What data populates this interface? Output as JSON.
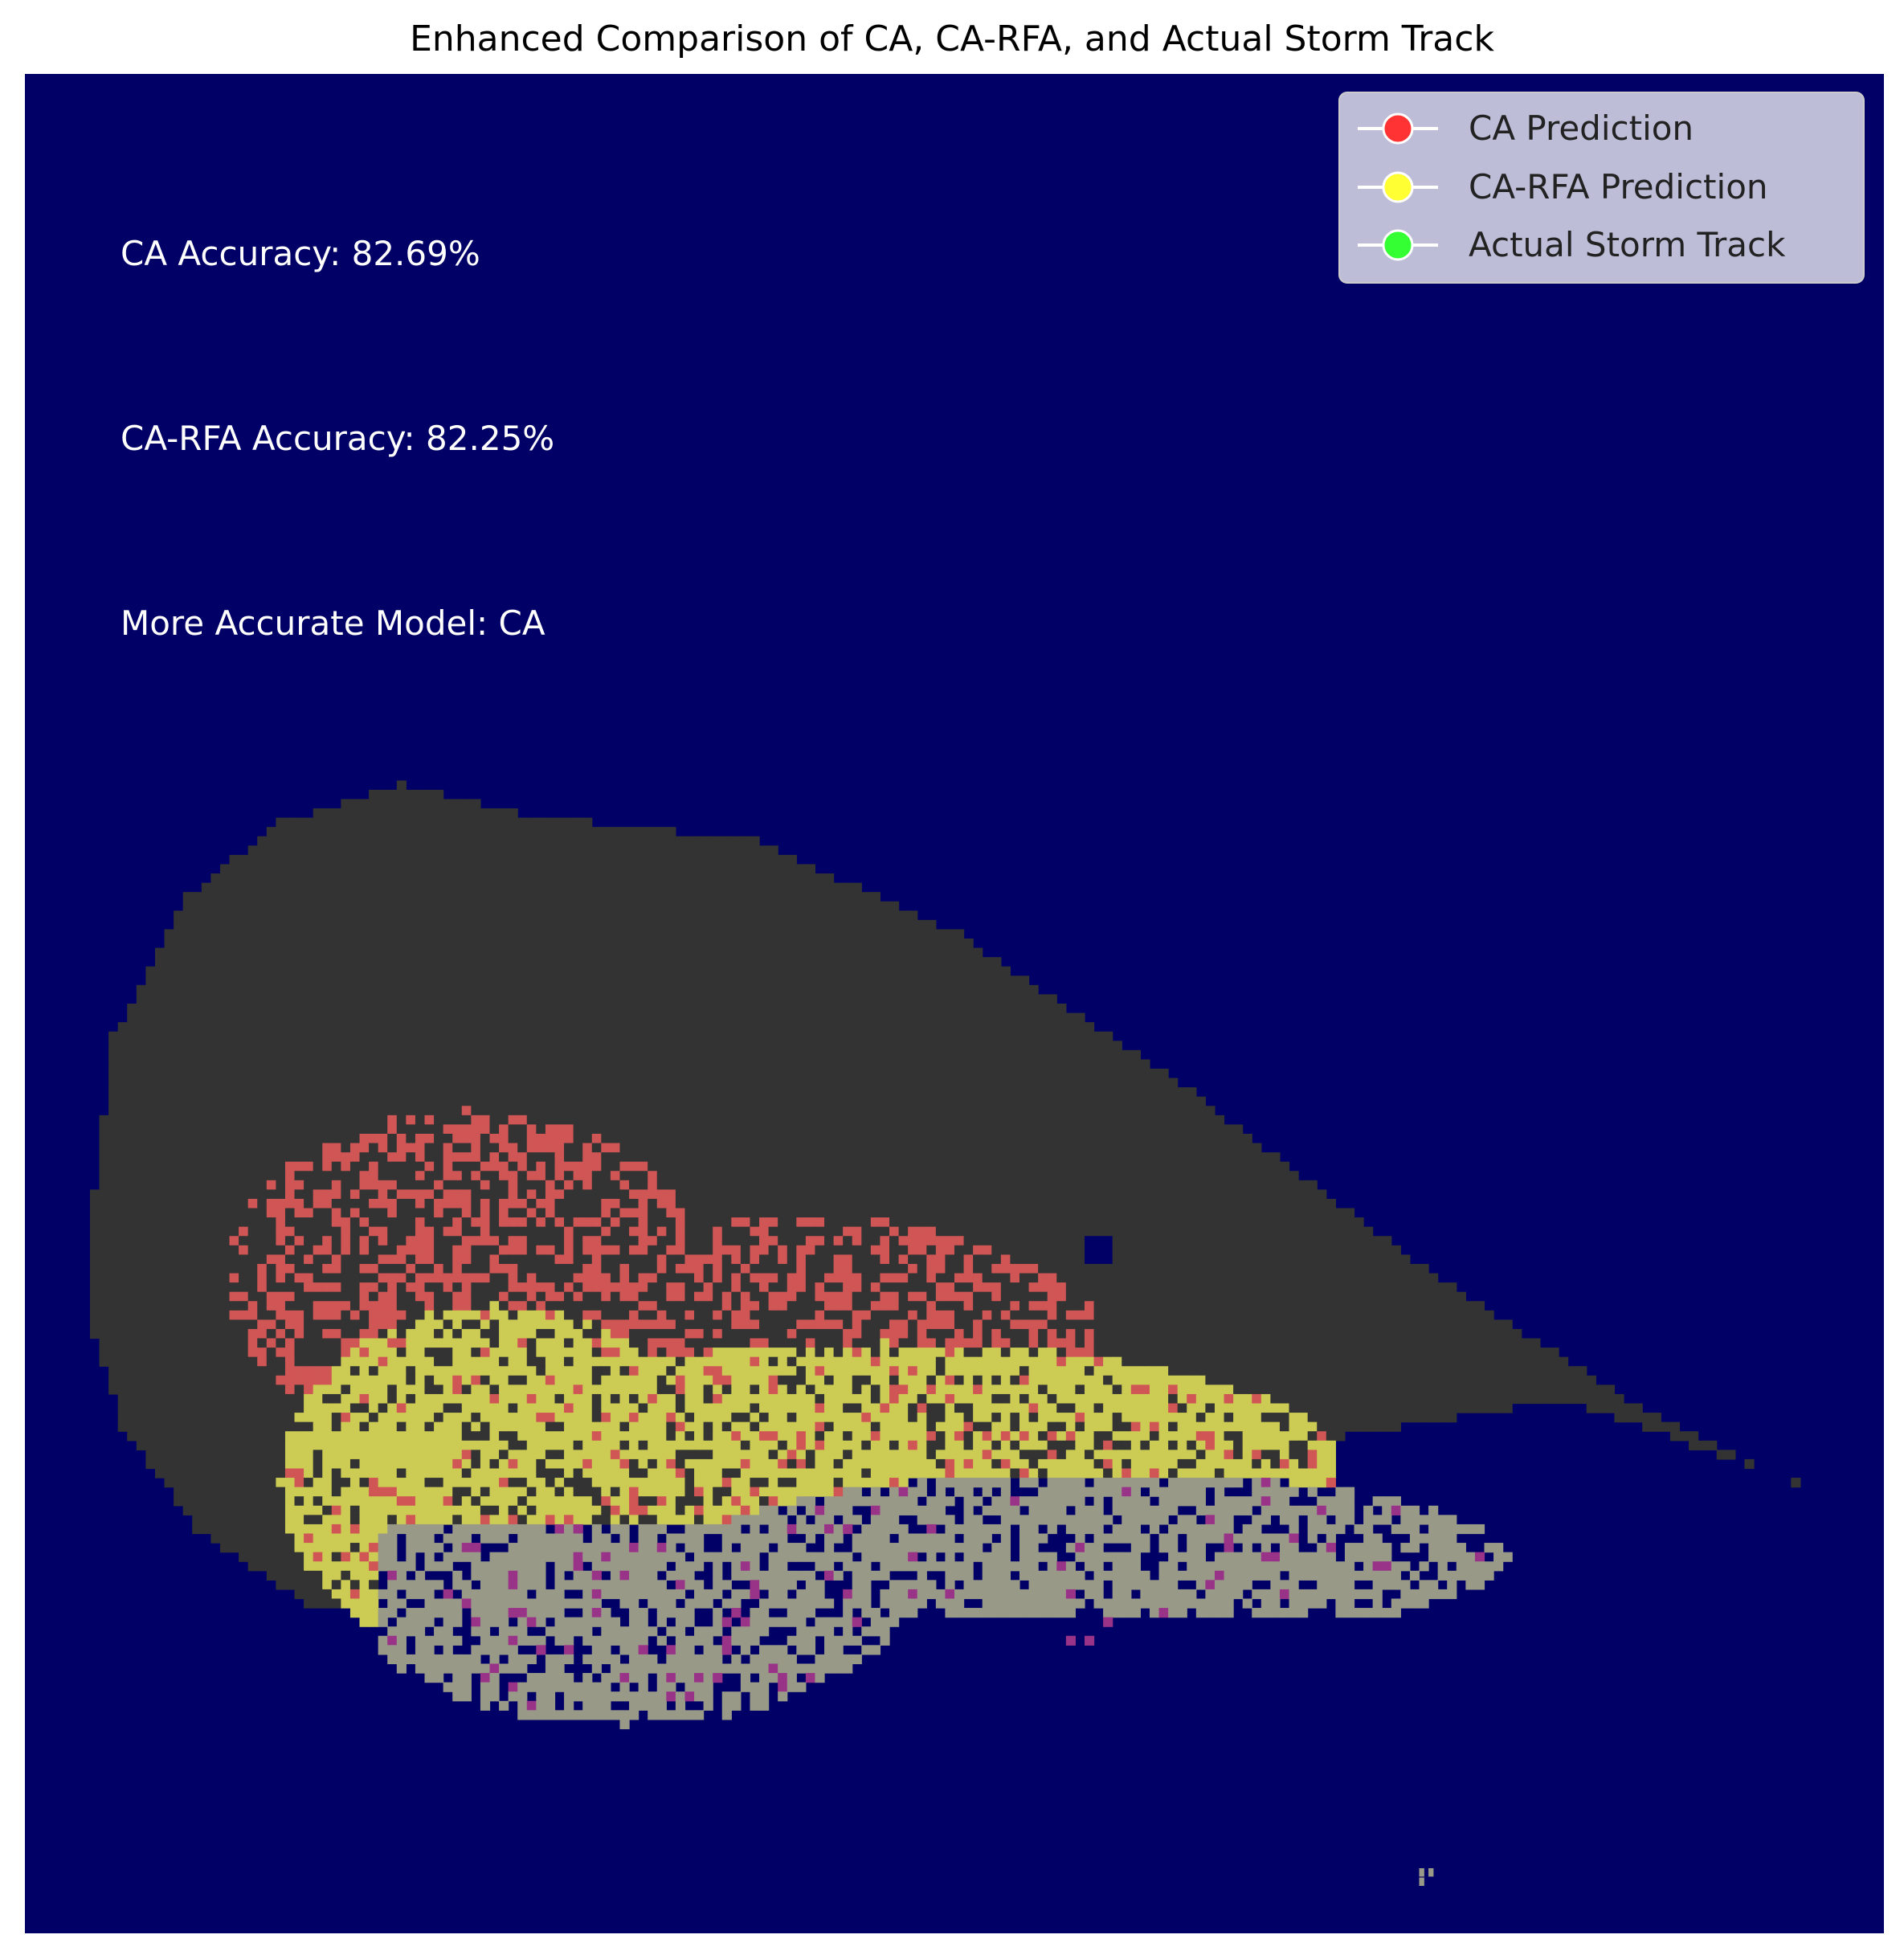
{
  "chart_data": {
    "type": "heatmap",
    "title": "Enhanced Comparison of CA, CA-RFA, and Actual Storm Track",
    "axes_visible": false,
    "grid": false,
    "colors": {
      "background": "#000066",
      "ca_region": "#d05555",
      "ca_rfa_region": "#cccc55",
      "actual_track": "#999988",
      "overlap_other": "#333333",
      "misc_cells": "#993388"
    },
    "annotations": [
      "CA Accuracy: 82.69%",
      "CA-RFA Accuracy: 82.25%",
      "More Accurate Model: CA"
    ],
    "legend": {
      "location": "upper right",
      "entries": [
        {
          "label": "CA Prediction",
          "color": "#ff3333"
        },
        {
          "label": "CA-RFA Prediction",
          "color": "#ffff33"
        },
        {
          "label": "Actual Storm Track",
          "color": "#33ff33"
        }
      ]
    }
  }
}
